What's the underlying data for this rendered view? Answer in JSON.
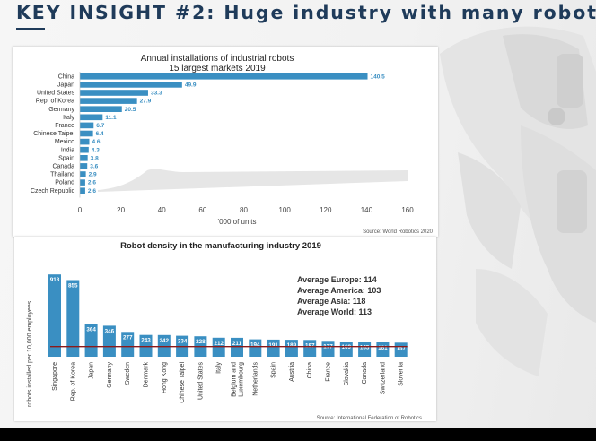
{
  "headline": "KEY INSIGHT #2: Huge industry with many robots",
  "colors": {
    "bar": "#3a8fc2",
    "headline": "#1f3b5a",
    "avg_line": "#8b1a1a"
  },
  "chart_data": [
    {
      "type": "bar",
      "orientation": "horizontal",
      "title": "Annual installations of industrial robots",
      "subtitle": "15 largest markets 2019",
      "xlabel": "'000 of units",
      "source": "Source: World Robotics 2020",
      "xlim": [
        0,
        160
      ],
      "xticks": [
        "0",
        "20",
        "40",
        "60",
        "80",
        "100",
        "120",
        "140",
        "160"
      ],
      "categories": [
        "China",
        "Japan",
        "United States",
        "Rep. of Korea",
        "Germany",
        "Italy",
        "France",
        "Chinese Taipei",
        "Mexico",
        "India",
        "Spain",
        "Canada",
        "Thailand",
        "Poland",
        "Czech Republic"
      ],
      "values": [
        140.5,
        49.9,
        33.3,
        27.9,
        20.5,
        11.1,
        6.7,
        6.4,
        4.6,
        4.3,
        3.8,
        3.6,
        2.9,
        2.6,
        2.6
      ],
      "value_labels": [
        "140.5",
        "49.9",
        "33.3",
        "27.9",
        "20.5",
        "11.1",
        "6.7",
        "6.4",
        "4.6",
        "4.3",
        "3.8",
        "3.6",
        "2.9",
        "2.6",
        "2.6"
      ]
    },
    {
      "type": "bar",
      "orientation": "vertical",
      "title": "Robot density in the manufacturing industry 2019",
      "ylabel": "robots installed per 10,000 employees",
      "source": "Source: International Federation of Robotics",
      "ylim": [
        0,
        1000
      ],
      "categories": [
        "Singapore",
        "Rep. of Korea",
        "Japan",
        "Germany",
        "Sweden",
        "Denmark",
        "Hong Kong",
        "Chinese Taipei",
        "United States",
        "Italy",
        "Belgium and Luxembourg",
        "Netherlands",
        "Spain",
        "Austria",
        "China",
        "France",
        "Slovakia",
        "Canada",
        "Switzerland",
        "Slovenia"
      ],
      "category_lines": [
        [
          "Singapore"
        ],
        [
          "Rep. of Korea"
        ],
        [
          "Japan"
        ],
        [
          "Germany"
        ],
        [
          "Sweden"
        ],
        [
          "Denmark"
        ],
        [
          "Hong Kong"
        ],
        [
          "Chinese Taipei"
        ],
        [
          "United States"
        ],
        [
          "Italy"
        ],
        [
          "Belgium and",
          "Luxembourg"
        ],
        [
          "Netherlands"
        ],
        [
          "Spain"
        ],
        [
          "Austria"
        ],
        [
          "China"
        ],
        [
          "France"
        ],
        [
          "Slovakia"
        ],
        [
          "Canada"
        ],
        [
          "Switzerland"
        ],
        [
          "Slovenia"
        ]
      ],
      "values": [
        918,
        855,
        364,
        346,
        277,
        243,
        242,
        234,
        228,
        212,
        211,
        194,
        191,
        189,
        187,
        177,
        169,
        165,
        161,
        157
      ],
      "value_labels": [
        "918",
        "855",
        "364",
        "346",
        "277",
        "243",
        "242",
        "234",
        "228",
        "212",
        "211",
        "194",
        "191",
        "189",
        "187",
        "177",
        "169",
        "165",
        "161",
        "157"
      ],
      "average_line": 113,
      "annotations": [
        "Average Europe: 114",
        "Average America: 103",
        "Average Asia: 118",
        "Average World: 113"
      ]
    }
  ]
}
